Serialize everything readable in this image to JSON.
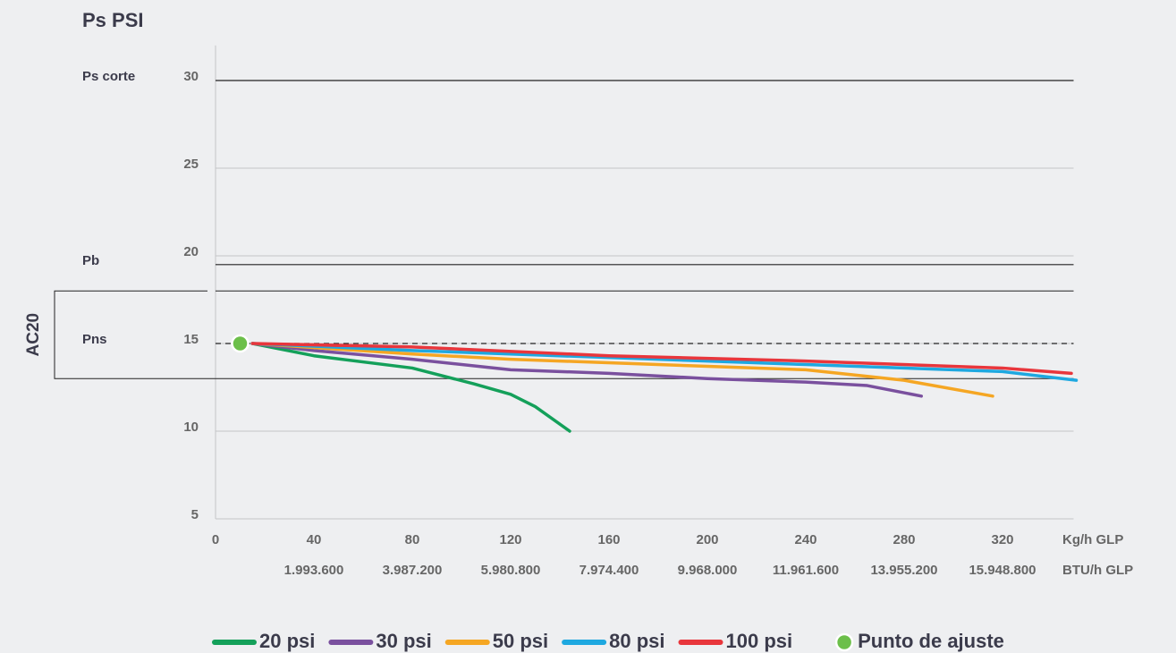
{
  "chart_data": {
    "type": "line",
    "title": "Ps PSI",
    "x_label": "Kg/h GLP",
    "x2_label": "BTU/h GLP",
    "xlim": [
      0,
      350
    ],
    "xticks": [
      0,
      40,
      80,
      120,
      160,
      200,
      240,
      280,
      320
    ],
    "x2ticks": [
      {
        "value": 40,
        "label": "1.993.600"
      },
      {
        "value": 80,
        "label": "3.987.200"
      },
      {
        "value": 120,
        "label": "5.980.800"
      },
      {
        "value": 160,
        "label": "7.974.400"
      },
      {
        "value": 200,
        "label": "9.968.000"
      },
      {
        "value": 240,
        "label": "11.961.600"
      },
      {
        "value": 280,
        "label": "13.955.200"
      },
      {
        "value": 320,
        "label": "15.948.800"
      }
    ],
    "ylim": [
      5,
      32
    ],
    "yticks": [
      5,
      10,
      15,
      20,
      25,
      30
    ],
    "grid": true,
    "reference_lines": [
      {
        "label": "Ps corte",
        "value": 30,
        "style": "solid"
      },
      {
        "label": "Pb",
        "value": 19.5,
        "style": "solid"
      },
      {
        "label": "Pns",
        "value": 15,
        "style": "dashed"
      }
    ],
    "band": {
      "label": "AC20",
      "range": [
        13,
        18
      ]
    },
    "series": [
      {
        "name": "20 psi",
        "color": "#14a05a",
        "x": [
          15,
          40,
          80,
          105,
          120,
          130,
          144
        ],
        "values": [
          15,
          14.3,
          13.6,
          12.7,
          12.1,
          11.4,
          10
        ]
      },
      {
        "name": "30 psi",
        "color": "#7a509e",
        "x": [
          15,
          40,
          80,
          120,
          160,
          200,
          240,
          265,
          287
        ],
        "values": [
          15,
          14.6,
          14.1,
          13.5,
          13.3,
          13.0,
          12.8,
          12.6,
          12.0
        ]
      },
      {
        "name": "50 psi",
        "color": "#f5a623",
        "x": [
          15,
          80,
          120,
          200,
          240,
          280,
          316
        ],
        "values": [
          15,
          14.4,
          14.1,
          13.7,
          13.5,
          12.9,
          12.0
        ]
      },
      {
        "name": "80 psi",
        "color": "#1ea8e0",
        "x": [
          15,
          80,
          160,
          240,
          320,
          350
        ],
        "values": [
          15,
          14.6,
          14.2,
          13.8,
          13.4,
          12.9
        ]
      },
      {
        "name": "100 psi",
        "color": "#e8363c",
        "x": [
          15,
          80,
          160,
          240,
          320,
          348
        ],
        "values": [
          15,
          14.8,
          14.3,
          14.0,
          13.6,
          13.3
        ]
      }
    ],
    "points": [
      {
        "name": "Punto de ajuste",
        "color": "#6cbf4a",
        "x": 10,
        "value": 15
      }
    ]
  }
}
